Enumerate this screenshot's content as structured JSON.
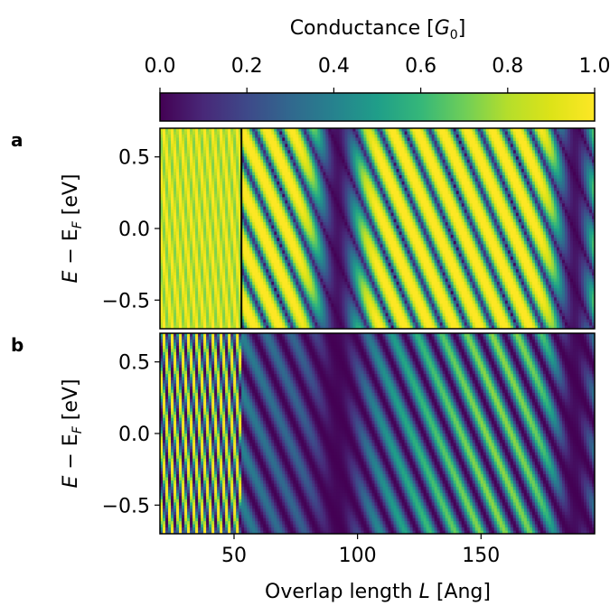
{
  "chart_data": {
    "type": "heatmap",
    "colorbar": {
      "label_text": "Conductance [",
      "label_symbol": "G",
      "label_subscript": "0",
      "label_close": "]",
      "range": [
        0.0,
        1.0
      ],
      "ticks": [
        "0.0",
        "0.2",
        "0.4",
        "0.6",
        "0.8",
        "1.0"
      ],
      "colormap": "viridis",
      "position": "top"
    },
    "xaxis": {
      "label_text": "Overlap length ",
      "label_symbol": "L",
      "label_unit": " [Ang]",
      "range": [
        20,
        196
      ],
      "ticks": [
        "50",
        "100",
        "150"
      ],
      "tick_values": [
        50,
        100,
        150
      ]
    },
    "yaxis": {
      "label_text": "E − E",
      "label_subscript": "F",
      "label_unit": " [eV]",
      "range": [
        -0.7,
        0.7
      ],
      "ticks": [
        "0.5",
        "0.0",
        "−0.5"
      ],
      "tick_values": [
        0.5,
        0.0,
        -0.5
      ]
    },
    "panels": [
      {
        "letter": "a",
        "marker_x": 53,
        "description_regions": [
          {
            "x_range": [
              20,
              53
            ],
            "pattern": "fine diagonal stripes, conductance mostly near 1.0"
          },
          {
            "x_range": [
              53,
              196
            ],
            "pattern": "checkerboard of conductance near 0 and 1, dark bands near L≈92 and L≈185"
          }
        ]
      },
      {
        "letter": "b",
        "marker_x": 53,
        "description_regions": [
          {
            "x_range": [
              20,
              53
            ],
            "pattern": "fine diagonal stripes, conductance 0 to 1"
          },
          {
            "x_range": [
              53,
              196
            ],
            "pattern": "oscillating conductance, generally lower, dark bands near L≈92 and L≈190"
          }
        ]
      }
    ]
  }
}
